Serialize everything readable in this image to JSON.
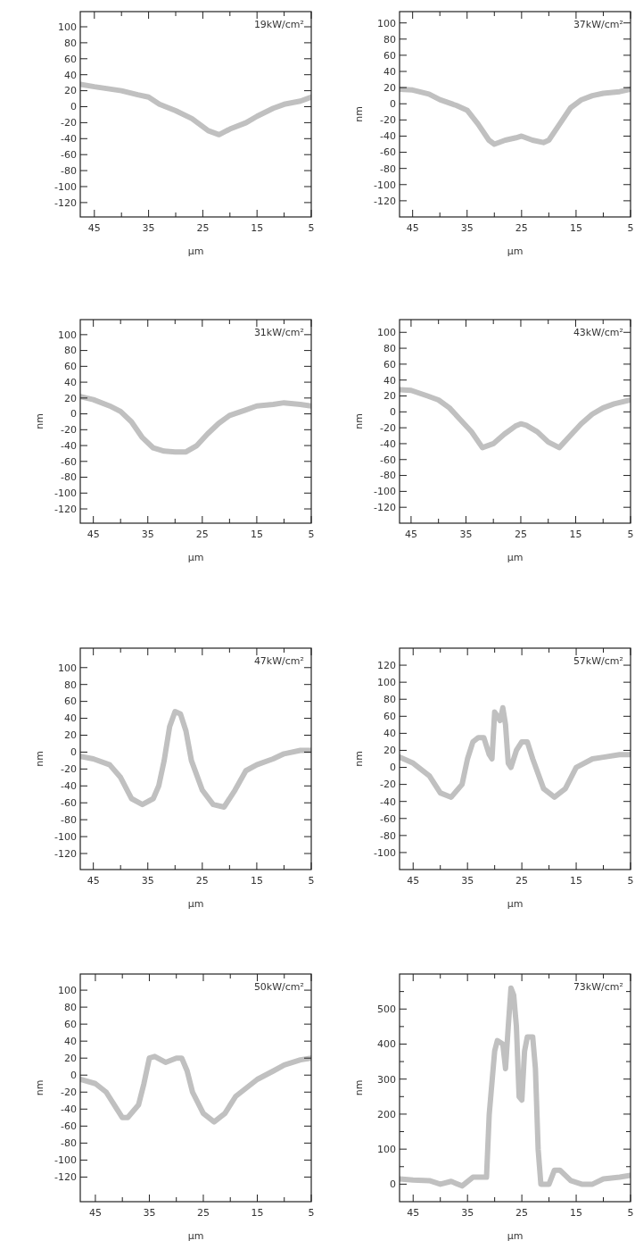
{
  "chart_data": [
    {
      "type": "line",
      "title": "19kW/cm²",
      "xlabel": "μm",
      "xlim": [
        47.6,
        5
      ],
      "ylim": [
        -138,
        119
      ],
      "xticks": [
        45,
        {
          "value": 40,
          "label": null
        },
        35,
        {
          "value": 30,
          "label": null
        },
        25,
        {
          "value": 20,
          "label": null
        },
        15,
        {
          "value": 10,
          "label": null
        },
        5
      ],
      "yticks": [
        -120,
        -100,
        -80,
        -60,
        -40,
        -20,
        0,
        20,
        40,
        60,
        80,
        100
      ],
      "series": [
        {
          "color": "#c0c0c0",
          "x": [
            47.6,
            45,
            40,
            37,
            35,
            33,
            30,
            27,
            24,
            22,
            20,
            17,
            15,
            12,
            10,
            7,
            5
          ],
          "values": [
            28,
            25,
            20,
            15,
            12,
            3,
            -5,
            -15,
            -30,
            -35,
            -28,
            -20,
            -12,
            -2,
            3,
            7,
            12
          ]
        }
      ]
    },
    {
      "type": "line",
      "title": "37kW/cm²",
      "xlabel": "μm",
      "ylabel": "nm",
      "xlim": [
        47.4,
        5
      ],
      "ylim": [
        -140,
        114
      ],
      "xticks": [
        45,
        {
          "value": 40,
          "label": null
        },
        35,
        {
          "value": 30,
          "label": null
        },
        25,
        {
          "value": 20,
          "label": null
        },
        15,
        {
          "value": 10,
          "label": null
        },
        5
      ],
      "yticks": [
        -120,
        -100,
        -80,
        -60,
        -40,
        -20,
        0,
        20,
        40,
        60,
        80,
        100
      ],
      "series": [
        {
          "color": "#c0c0c0",
          "x": [
            47.4,
            45,
            42,
            40,
            37,
            35,
            33,
            31,
            30,
            28,
            26,
            25,
            23,
            21,
            20,
            18,
            16,
            14,
            12,
            10,
            7,
            5
          ],
          "values": [
            18,
            17,
            12,
            5,
            -2,
            -8,
            -25,
            -45,
            -50,
            -45,
            -42,
            -40,
            -45,
            -48,
            -45,
            -25,
            -5,
            5,
            10,
            13,
            15,
            18
          ]
        }
      ]
    },
    {
      "type": "line",
      "title": "31kW/cm²",
      "xlabel": "μm",
      "ylabel": "nm",
      "xlim": [
        47.4,
        5
      ],
      "ylim": [
        -138,
        119
      ],
      "xticks": [
        45,
        {
          "value": 40,
          "label": null
        },
        35,
        {
          "value": 30,
          "label": null
        },
        25,
        {
          "value": 20,
          "label": null
        },
        15,
        {
          "value": 10,
          "label": null
        },
        5
      ],
      "yticks": [
        -120,
        -100,
        -80,
        -60,
        -40,
        -20,
        0,
        20,
        40,
        60,
        80,
        100
      ],
      "series": [
        {
          "color": "#c0c0c0",
          "x": [
            47.4,
            45,
            42,
            40,
            38,
            36,
            34,
            32,
            30,
            28,
            26,
            24,
            22,
            20,
            17,
            15,
            12,
            10,
            7,
            5
          ],
          "values": [
            22,
            18,
            10,
            3,
            -10,
            -30,
            -43,
            -47,
            -48,
            -48,
            -40,
            -25,
            -12,
            -2,
            5,
            10,
            12,
            14,
            12,
            10
          ]
        }
      ]
    },
    {
      "type": "line",
      "title": "43kW/cm²",
      "xlabel": "μm",
      "ylabel": "nm",
      "xlim": [
        47.1,
        5
      ],
      "ylim": [
        -140,
        116
      ],
      "xticks": [
        45,
        {
          "value": 40,
          "label": null
        },
        35,
        {
          "value": 30,
          "label": null
        },
        25,
        {
          "value": 20,
          "label": null
        },
        15,
        {
          "value": 10,
          "label": null
        },
        5
      ],
      "yticks": [
        -120,
        -100,
        -80,
        -60,
        -40,
        -20,
        0,
        20,
        40,
        60,
        80,
        100
      ],
      "series": [
        {
          "color": "#c0c0c0",
          "x": [
            47.1,
            45,
            42,
            40,
            38,
            36,
            34,
            32,
            30,
            28,
            26,
            25,
            24,
            22,
            20,
            18,
            16,
            14,
            12,
            10,
            8,
            5
          ],
          "values": [
            28,
            27,
            20,
            15,
            5,
            -10,
            -25,
            -45,
            -40,
            -28,
            -18,
            -15,
            -17,
            -25,
            -38,
            -45,
            -30,
            -15,
            -3,
            5,
            10,
            15
          ]
        }
      ]
    },
    {
      "type": "line",
      "title": "47kW/cm²",
      "xlabel": "μm",
      "ylabel": "nm",
      "xlim": [
        47.4,
        5
      ],
      "ylim": [
        -139,
        123
      ],
      "xticks": [
        45,
        {
          "value": 40,
          "label": null
        },
        35,
        {
          "value": 30,
          "label": null
        },
        25,
        {
          "value": 20,
          "label": null
        },
        15,
        {
          "value": 10,
          "label": null
        },
        5
      ],
      "yticks": [
        -120,
        -100,
        -80,
        -60,
        -40,
        -20,
        0,
        20,
        40,
        60,
        80,
        100
      ],
      "series": [
        {
          "color": "#c0c0c0",
          "x": [
            47.4,
            45,
            42,
            40,
            38,
            36,
            34,
            33,
            32,
            31,
            30,
            29,
            28,
            27,
            25,
            23,
            21,
            19,
            17,
            15,
            12,
            10,
            7,
            5
          ],
          "values": [
            -5,
            -8,
            -15,
            -30,
            -55,
            -62,
            -55,
            -40,
            -10,
            30,
            48,
            45,
            25,
            -10,
            -45,
            -62,
            -65,
            -45,
            -22,
            -15,
            -8,
            -2,
            2,
            2
          ]
        }
      ]
    },
    {
      "type": "line",
      "title": "57kW/cm²",
      "xlabel": "μm",
      "ylabel": "nm",
      "xlim": [
        47.5,
        5
      ],
      "ylim": [
        -120,
        140
      ],
      "xticks": [
        45,
        {
          "value": 40,
          "label": null
        },
        35,
        {
          "value": 30,
          "label": null
        },
        25,
        {
          "value": 20,
          "label": null
        },
        15,
        {
          "value": 10,
          "label": null
        },
        5
      ],
      "yticks": [
        -100,
        -80,
        -60,
        -40,
        -20,
        0,
        20,
        40,
        60,
        80,
        100,
        120
      ],
      "series": [
        {
          "color": "#c0c0c0",
          "x": [
            47.5,
            45,
            42,
            40,
            38,
            36,
            35,
            34,
            33,
            32,
            31,
            30.5,
            30,
            29,
            28.5,
            28,
            27.5,
            27,
            26,
            25,
            24,
            23,
            21,
            19,
            17,
            15,
            12,
            10,
            7,
            5
          ],
          "values": [
            12,
            5,
            -10,
            -30,
            -35,
            -20,
            10,
            30,
            35,
            35,
            15,
            10,
            65,
            55,
            70,
            50,
            5,
            0,
            20,
            30,
            30,
            10,
            -25,
            -35,
            -25,
            0,
            10,
            12,
            15,
            15
          ]
        }
      ]
    },
    {
      "type": "line",
      "title": "50kW/cm²",
      "xlabel": "μm",
      "ylabel": "nm",
      "xlim": [
        47.8,
        5
      ],
      "ylim": [
        -149,
        119
      ],
      "xticks": [
        45,
        {
          "value": 40,
          "label": null
        },
        35,
        {
          "value": 30,
          "label": null
        },
        25,
        {
          "value": 20,
          "label": null
        },
        15,
        {
          "value": 10,
          "label": null
        },
        5
      ],
      "yticks": [
        -120,
        -100,
        -80,
        -60,
        -40,
        -20,
        0,
        20,
        40,
        60,
        80,
        100
      ],
      "series": [
        {
          "color": "#c0c0c0",
          "x": [
            47.8,
            45,
            43,
            41,
            40,
            39,
            37,
            36,
            35,
            34,
            32,
            30,
            29,
            28,
            27,
            25,
            23,
            21,
            19,
            17,
            15,
            12,
            10,
            7,
            5
          ],
          "values": [
            -5,
            -10,
            -20,
            -40,
            -50,
            -50,
            -35,
            -10,
            20,
            22,
            15,
            20,
            20,
            5,
            -20,
            -45,
            -55,
            -45,
            -25,
            -15,
            -5,
            5,
            12,
            18,
            20
          ]
        }
      ]
    },
    {
      "type": "line",
      "title": "73kW/cm²",
      "xlabel": "μm",
      "ylabel": "nm",
      "xlim": [
        47.5,
        5
      ],
      "ylim": [
        -50,
        600
      ],
      "xticks": [
        45,
        {
          "value": 40,
          "label": null
        },
        35,
        {
          "value": 30,
          "label": null
        },
        25,
        {
          "value": 20,
          "label": null
        },
        15,
        {
          "value": 10,
          "label": null
        },
        5
      ],
      "yticks": [
        0,
        {
          "value": 50,
          "label": null
        },
        100,
        {
          "value": 150,
          "label": null
        },
        200,
        {
          "value": 250,
          "label": null
        },
        300,
        {
          "value": 350,
          "label": null
        },
        400,
        {
          "value": 450,
          "label": null
        },
        500,
        {
          "value": 550,
          "label": null
        }
      ],
      "series": [
        {
          "color": "#c0c0c0",
          "x": [
            47.5,
            45,
            42,
            40,
            38,
            36,
            34,
            32,
            31.5,
            31,
            30,
            29.5,
            28.5,
            28,
            27.5,
            27,
            26.5,
            26,
            25.5,
            25,
            24.5,
            24,
            23,
            22.5,
            22,
            21.5,
            20,
            19,
            18,
            16,
            14,
            12,
            10,
            7,
            5
          ],
          "values": [
            15,
            12,
            10,
            0,
            8,
            -5,
            20,
            20,
            20,
            200,
            380,
            410,
            400,
            330,
            450,
            560,
            540,
            450,
            250,
            240,
            380,
            420,
            420,
            330,
            100,
            0,
            0,
            40,
            40,
            10,
            0,
            0,
            15,
            20,
            25
          ]
        }
      ]
    }
  ]
}
